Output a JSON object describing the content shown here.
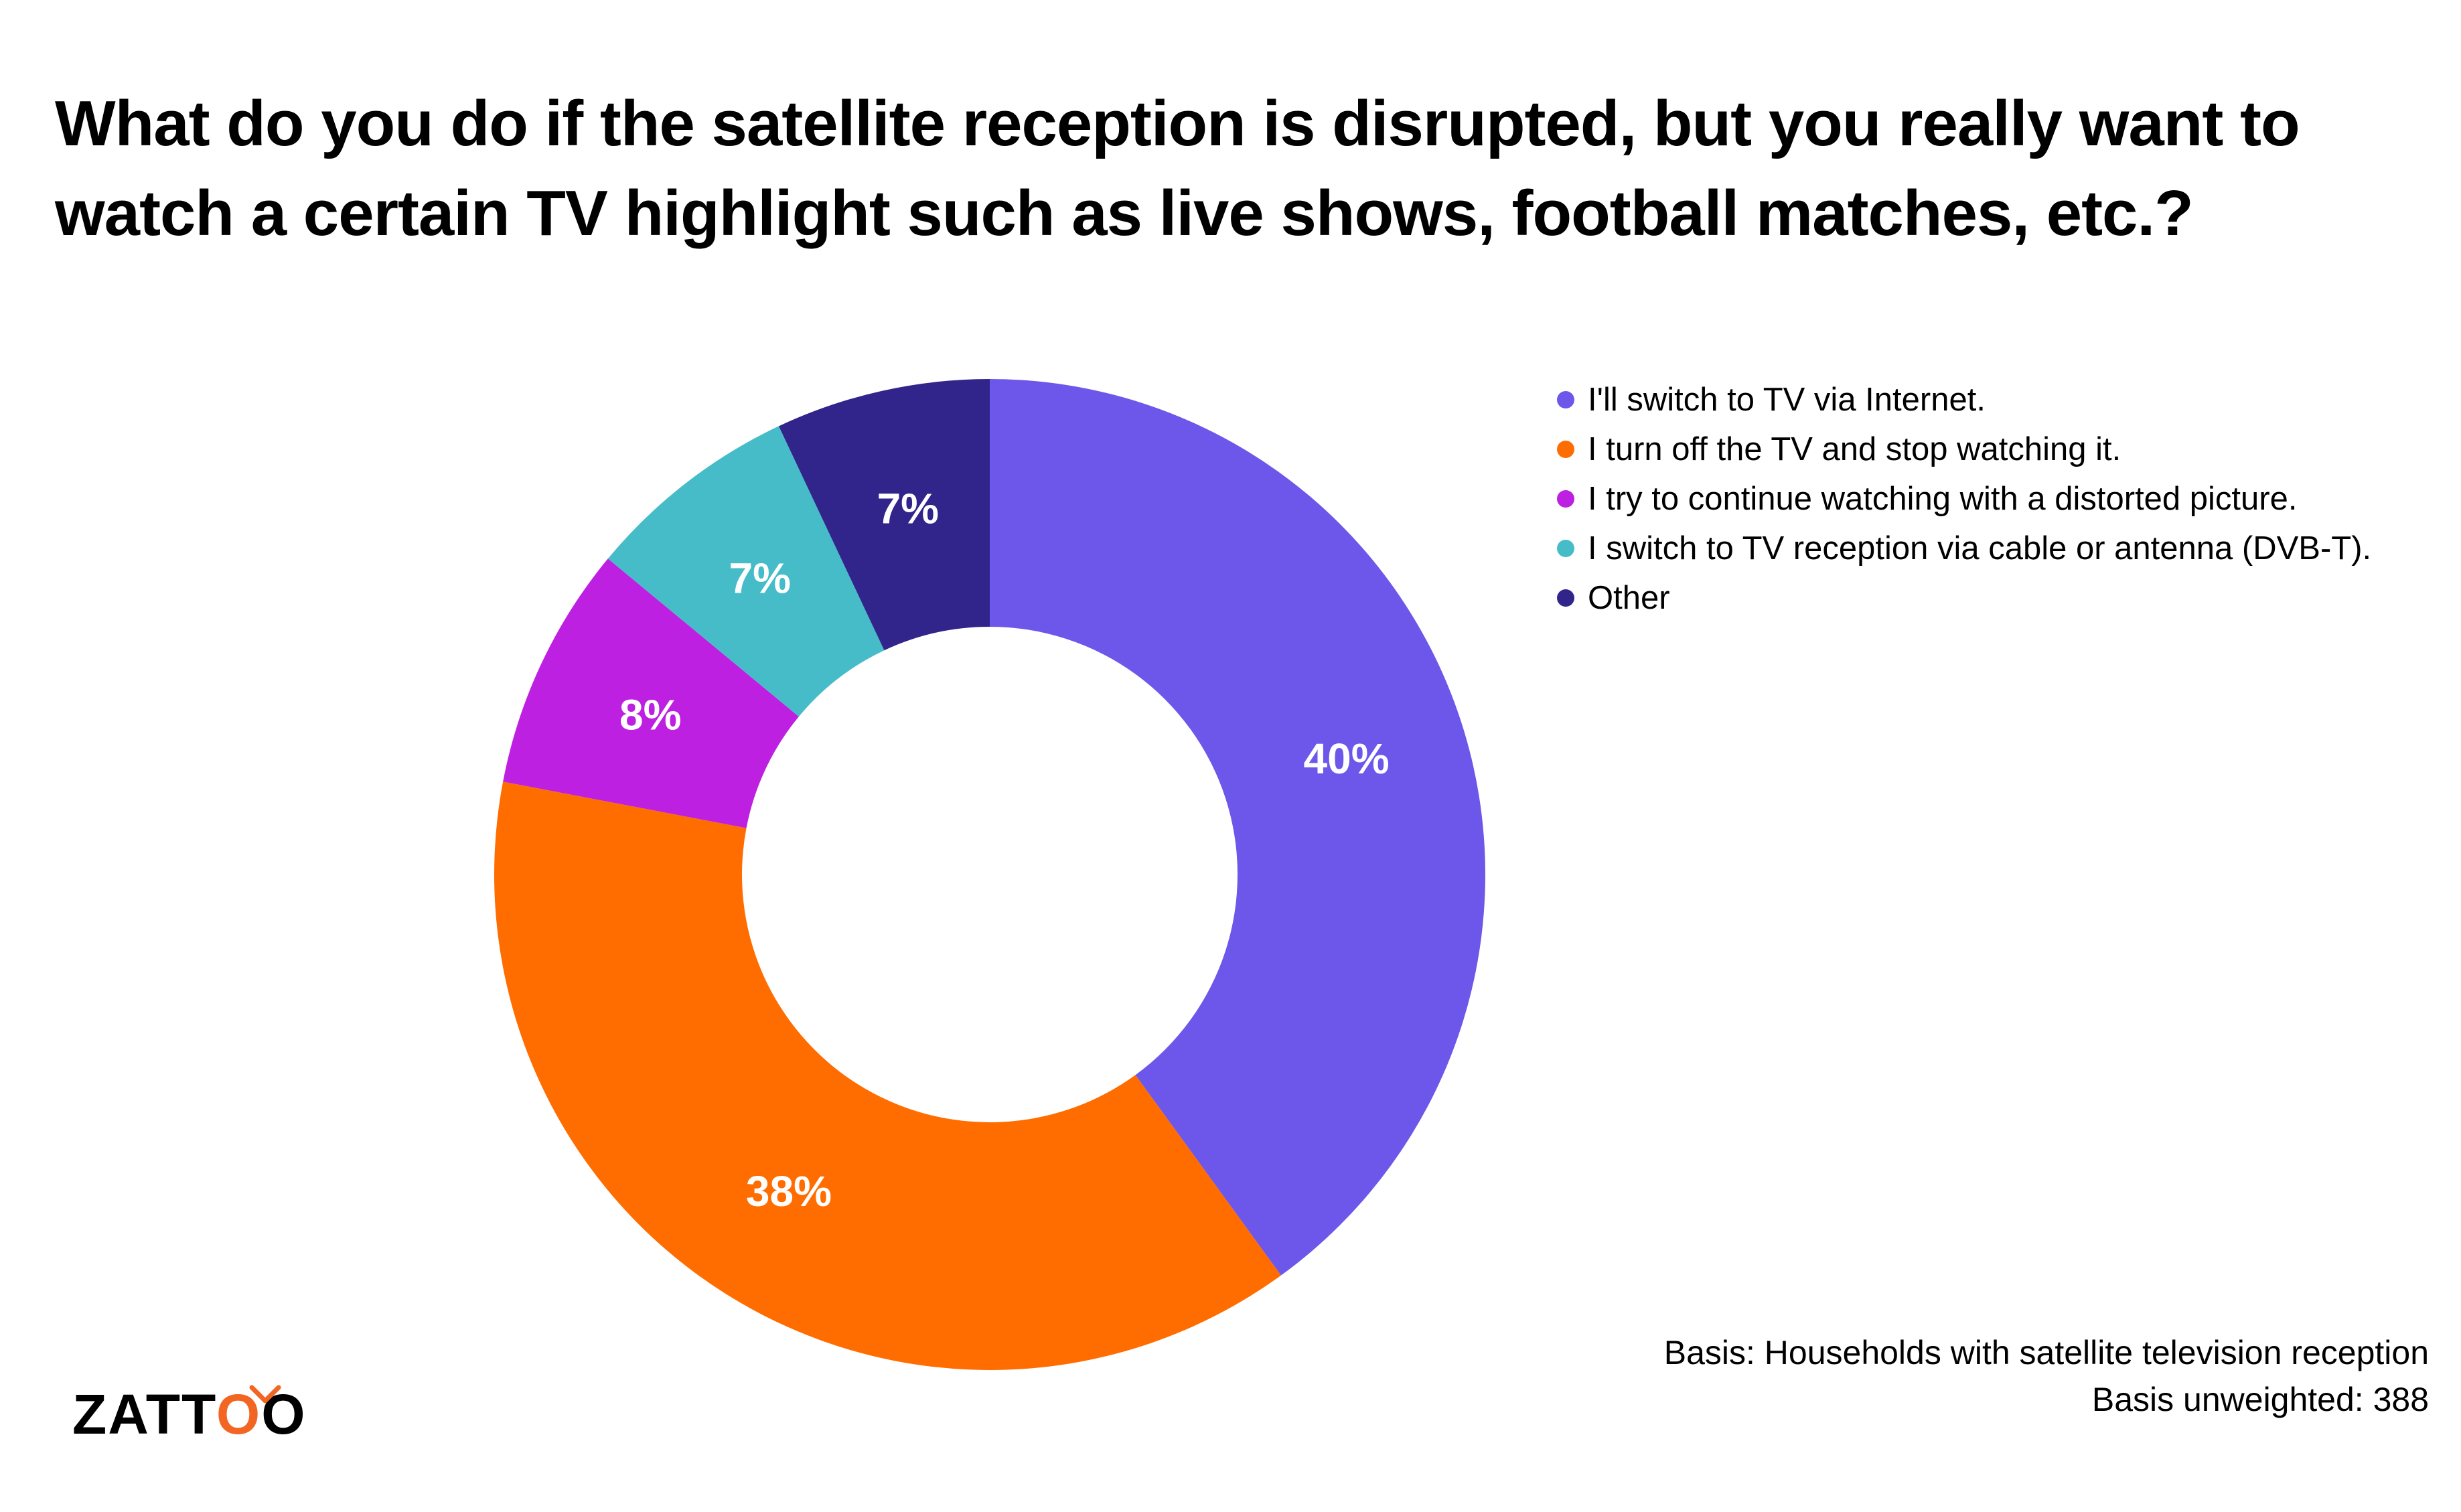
{
  "chart_data": {
    "type": "pie",
    "variant": "donut",
    "title": "What do you do if the satellite reception is disrupted, but you really want to watch a certain TV highlight such as live shows, football matches, etc.?",
    "categories": [
      "I'll switch to TV via Internet.",
      "I turn off the TV and stop watching it.",
      "I try to continue watching with a distorted picture.",
      "I switch to TV reception via cable or antenna (DVB-T).",
      "Other"
    ],
    "values": [
      40,
      38,
      8,
      7,
      7
    ],
    "labels": [
      "40%",
      "38%",
      "8%",
      "7%",
      "7%"
    ],
    "colors": [
      "#6c57ea",
      "#ff6c00",
      "#bd20e0",
      "#46bcc8",
      "#31258c"
    ],
    "legend_position": "top-right"
  },
  "footer": {
    "basis_line1": "Basis: Households with satellite television reception",
    "basis_line2": "Basis unweighted: 388"
  },
  "logo": {
    "text_prefix": "ZATT",
    "text_o1": "O",
    "text_o2": "O",
    "accent_color": "#f26522"
  }
}
